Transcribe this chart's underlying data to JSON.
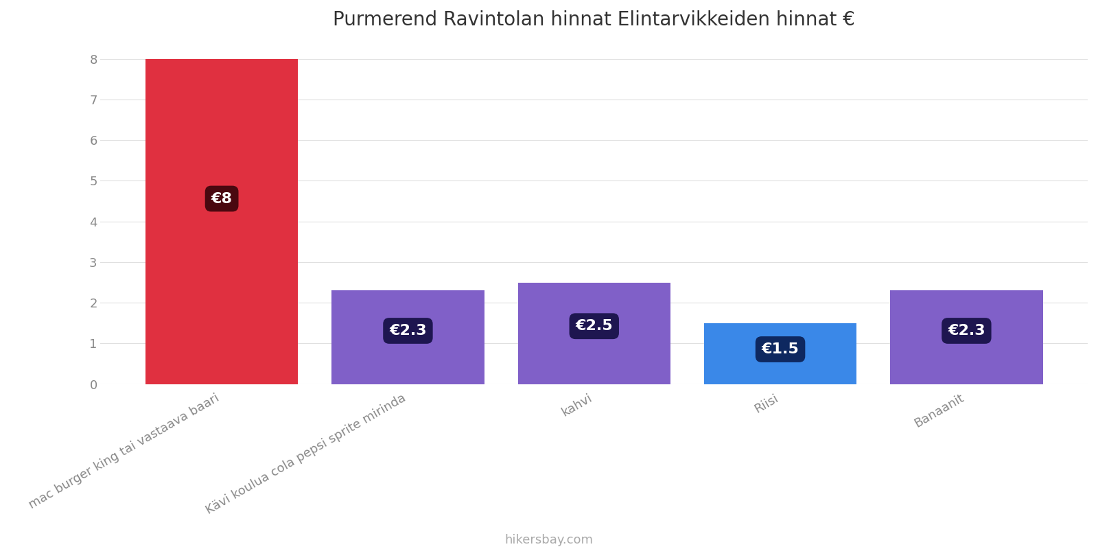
{
  "title": "Purmerend Ravintolan hinnat Elintarvikkeiden hinnat €",
  "categories": [
    "mac burger king tai vastaava baari",
    "Kävi koulua cola pepsi sprite mirinda",
    "kahvi",
    "Riisi",
    "Banaanit"
  ],
  "values": [
    8.0,
    2.3,
    2.5,
    1.5,
    2.3
  ],
  "bar_colors": [
    "#e03040",
    "#8060c8",
    "#8060c8",
    "#3a88e8",
    "#8060c8"
  ],
  "label_bg_colors": [
    "#4a0810",
    "#1e1650",
    "#1e1650",
    "#0e2860",
    "#1e1650"
  ],
  "labels": [
    "€8",
    "€2.3",
    "€2.5",
    "€1.5",
    "€2.3"
  ],
  "ylim": [
    0,
    8.4
  ],
  "yticks": [
    0,
    1,
    2,
    3,
    4,
    5,
    6,
    7,
    8
  ],
  "footer": "hikersbay.com",
  "bg_color": "#ffffff",
  "grid_color": "#e0e0e0",
  "title_fontsize": 20,
  "tick_fontsize": 13,
  "label_fontsize": 16,
  "footer_fontsize": 13,
  "bar_width": 0.82
}
